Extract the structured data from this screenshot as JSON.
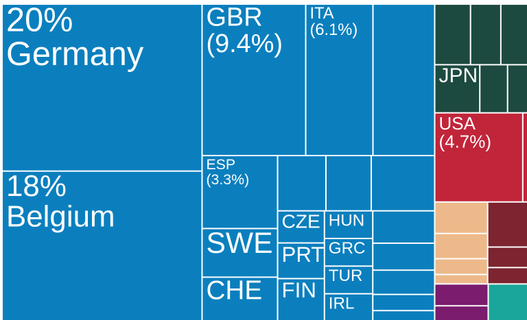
{
  "chart_data": {
    "type": "treemap",
    "categories": [
      "Germany",
      "Belgium",
      "GBR",
      "ITA",
      null,
      "ESP",
      "SWE",
      "CHE",
      null,
      null,
      null,
      "CZE",
      "PRT",
      "FIN",
      "HUN",
      "GRC",
      "TUR",
      "IRL",
      null,
      null,
      null,
      null,
      null,
      null,
      null,
      null,
      "JPN",
      null,
      null,
      "USA",
      null,
      null,
      null,
      null,
      null,
      null,
      null,
      null,
      null,
      null,
      null
    ],
    "values": [
      20,
      18,
      9.4,
      6.1,
      5.6,
      3.3,
      2.2,
      2.0,
      1.6,
      1.5,
      2.1,
      0.9,
      1.0,
      1.2,
      0.8,
      0.8,
      0.8,
      0.8,
      1.2,
      1.0,
      0.9,
      0.6,
      0.4,
      1.3,
      1.1,
      1.0,
      1.3,
      0.8,
      0.6,
      4.7,
      0.3,
      1.0,
      0.8,
      0.5,
      0.3,
      1.1,
      0.5,
      0.4,
      0.7,
      0.5,
      0.9
    ],
    "value_labels": [
      "20%",
      "18%",
      "(9.4%)",
      "(6.1%)",
      null,
      "(3.3%)",
      null,
      null,
      null,
      null,
      null,
      null,
      null,
      null,
      null,
      null,
      null,
      null,
      null,
      null,
      null,
      null,
      null,
      null,
      null,
      null,
      null,
      null,
      null,
      "(4.7%)",
      null,
      null,
      null,
      null,
      null,
      null,
      null,
      null,
      null,
      null,
      null
    ],
    "colors": [
      "#0b7fbe",
      "#0b7fbe",
      "#0b7fbe",
      "#0b7fbe",
      "#0b7fbe",
      "#0b7fbe",
      "#0b7fbe",
      "#0b7fbe",
      "#0b7fbe",
      "#0b7fbe",
      "#0b7fbe",
      "#0b7fbe",
      "#0b7fbe",
      "#0b7fbe",
      "#0b7fbe",
      "#0b7fbe",
      "#0b7fbe",
      "#0b7fbe",
      "#0b7fbe",
      "#0b7fbe",
      "#0b7fbe",
      "#0b7fbe",
      "#0b7fbe",
      "#1d4a40",
      "#1d4a40",
      "#1d4a40",
      "#1d4a40",
      "#1d4a40",
      "#1d4a40",
      "#c1253a",
      "#c1253a",
      "#edb98a",
      "#edb98a",
      "#edb98a",
      "#edb98a",
      "#7d2430",
      "#7d2430",
      "#7d2430",
      "#7b1c6e",
      "#7b1c6e",
      "#1aa69a"
    ]
  }
}
